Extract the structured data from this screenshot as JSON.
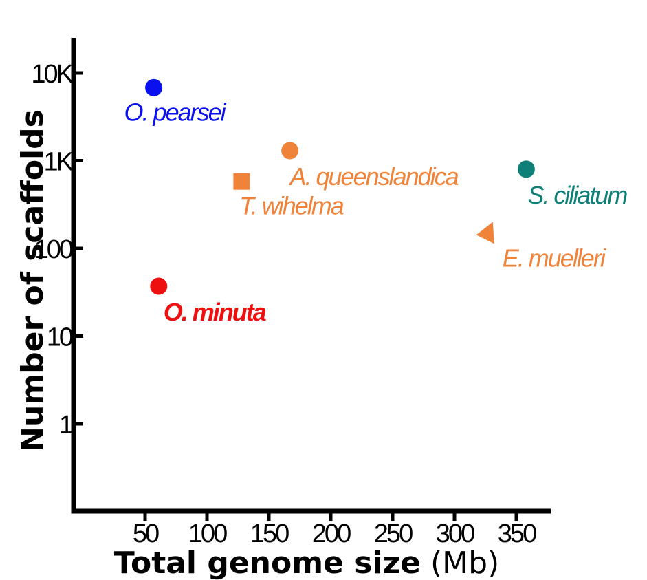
{
  "chart_data": {
    "type": "scatter",
    "xlabel": "Total genome size",
    "xlabel_unit": "(Mb)",
    "ylabel": "Number of scaffolds",
    "y_scale": "log",
    "xlim": [
      0,
      370
    ],
    "ylim": [
      0.1,
      25000
    ],
    "x_ticks": [
      50,
      100,
      150,
      200,
      250,
      300,
      350
    ],
    "x_tick_labels": [
      "50",
      "100",
      "150",
      "200",
      "250",
      "300",
      "350"
    ],
    "y_ticks": [
      1,
      10,
      100,
      1000,
      10000
    ],
    "y_tick_labels": [
      "1",
      "10",
      "100",
      "1K",
      "10K"
    ],
    "grid": false,
    "legend": "none",
    "points": [
      {
        "label": "O. pearsei",
        "x": 57,
        "y": 6800,
        "color": "#0a10ee",
        "marker": "circle",
        "bold": false
      },
      {
        "label": "A. queenslandica",
        "x": 167,
        "y": 1300,
        "color": "#f0833a",
        "marker": "circle",
        "bold": false
      },
      {
        "label": "T. wihelma",
        "x": 128,
        "y": 580,
        "color": "#f0833a",
        "marker": "square",
        "bold": false
      },
      {
        "label": "S. ciliatum",
        "x": 358,
        "y": 800,
        "color": "#0f8078",
        "marker": "circle",
        "bold": false
      },
      {
        "label": "E. muelleri",
        "x": 326,
        "y": 145,
        "color": "#f0833a",
        "marker": "triangle",
        "bold": false
      },
      {
        "label": "O. minuta",
        "x": 61,
        "y": 37,
        "color": "#ee1010",
        "marker": "circle",
        "bold": true
      }
    ]
  }
}
